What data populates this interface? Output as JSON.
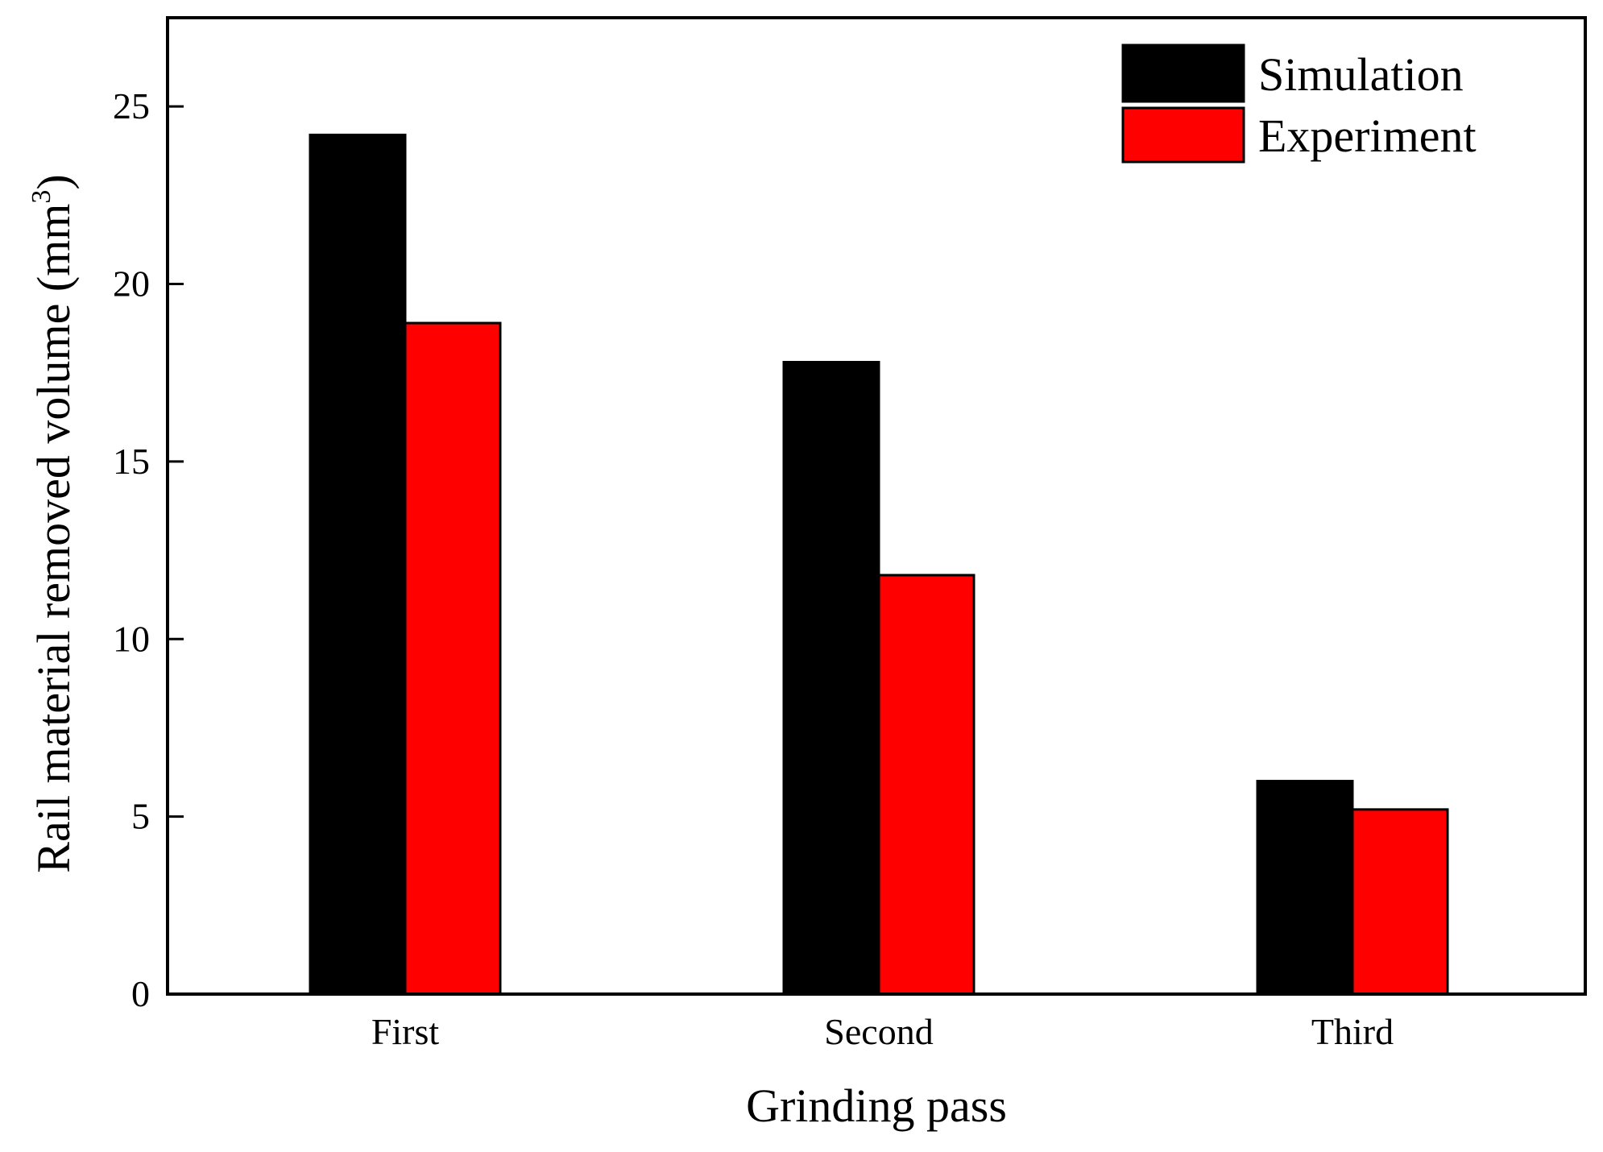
{
  "chart_data": {
    "type": "bar",
    "title": "",
    "xlabel": "Grinding pass",
    "ylabel": "Rail material removed volume (mm",
    "ylabel_sup": "3",
    "ylabel_close": ")",
    "categories": [
      "First",
      "Second",
      "Third"
    ],
    "series": [
      {
        "name": "Simulation",
        "color": "#000000",
        "values": [
          24.2,
          17.8,
          6.0
        ]
      },
      {
        "name": "Experiment",
        "color": "#ff0000",
        "values": [
          18.9,
          11.8,
          5.2
        ]
      }
    ],
    "ylim": [
      0,
      27.5
    ],
    "yticks": [
      0,
      5,
      10,
      15,
      20,
      25
    ],
    "grid": false,
    "legend_position": "top-right"
  }
}
